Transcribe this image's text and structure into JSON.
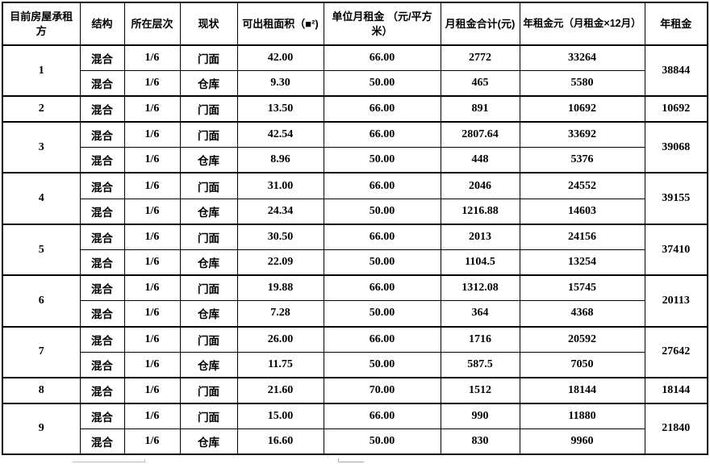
{
  "colors": {
    "background": "#ffffff",
    "border": "#000000",
    "text": "#000000"
  },
  "table": {
    "headers": [
      "目前房屋承租方",
      "结构",
      "所在层次",
      "现状",
      "可出租面积（■²)",
      "单位月租金 （元/平方米）",
      "月租金合计(元)",
      "年租金元（月租金×12月）",
      "年租金"
    ],
    "groups": [
      {
        "tenant": "1",
        "annual": "38844",
        "rows": [
          [
            "混合",
            "1/6",
            "门面",
            "42.00",
            "66.00",
            "2772",
            "33264"
          ],
          [
            "混合",
            "1/6",
            "仓库",
            "9.30",
            "50.00",
            "465",
            "5580"
          ]
        ]
      },
      {
        "tenant": "2",
        "annual": "10692",
        "rows": [
          [
            "混合",
            "1/6",
            "门面",
            "13.50",
            "66.00",
            "891",
            "10692"
          ]
        ]
      },
      {
        "tenant": "3",
        "annual": "39068",
        "rows": [
          [
            "混合",
            "1/6",
            "门面",
            "42.54",
            "66.00",
            "2807.64",
            "33692"
          ],
          [
            "混合",
            "1/6",
            "仓库",
            "8.96",
            "50.00",
            "448",
            "5376"
          ]
        ]
      },
      {
        "tenant": "4",
        "annual": "39155",
        "rows": [
          [
            "混合",
            "1/6",
            "门面",
            "31.00",
            "66.00",
            "2046",
            "24552"
          ],
          [
            "混合",
            "1/6",
            "仓库",
            "24.34",
            "50.00",
            "1216.88",
            "14603"
          ]
        ]
      },
      {
        "tenant": "5",
        "annual": "37410",
        "rows": [
          [
            "混合",
            "1/6",
            "门面",
            "30.50",
            "66.00",
            "2013",
            "24156"
          ],
          [
            "混合",
            "1/6",
            "仓库",
            "22.09",
            "50.00",
            "1104.5",
            "13254"
          ]
        ]
      },
      {
        "tenant": "6",
        "annual": "20113",
        "rows": [
          [
            "混合",
            "1/6",
            "门面",
            "19.88",
            "66.00",
            "1312.08",
            "15745"
          ],
          [
            "混合",
            "1/6",
            "仓库",
            "7.28",
            "50.00",
            "364",
            "4368"
          ]
        ]
      },
      {
        "tenant": "7",
        "annual": "27642",
        "rows": [
          [
            "混合",
            "1/6",
            "门面",
            "26.00",
            "66.00",
            "1716",
            "20592"
          ],
          [
            "混合",
            "1/6",
            "仓库",
            "11.75",
            "50.00",
            "587.5",
            "7050"
          ]
        ]
      },
      {
        "tenant": "8",
        "annual": "18144",
        "rows": [
          [
            "混合",
            "1/6",
            "门面",
            "21.60",
            "70.00",
            "1512",
            "18144"
          ]
        ]
      },
      {
        "tenant": "9",
        "annual": "21840",
        "rows": [
          [
            "混合",
            "1/6",
            "门面",
            "15.00",
            "66.00",
            "990",
            "11880"
          ],
          [
            "混合",
            "1/6",
            "仓库",
            "16.60",
            "50.00",
            "830",
            "9960"
          ]
        ]
      }
    ]
  }
}
